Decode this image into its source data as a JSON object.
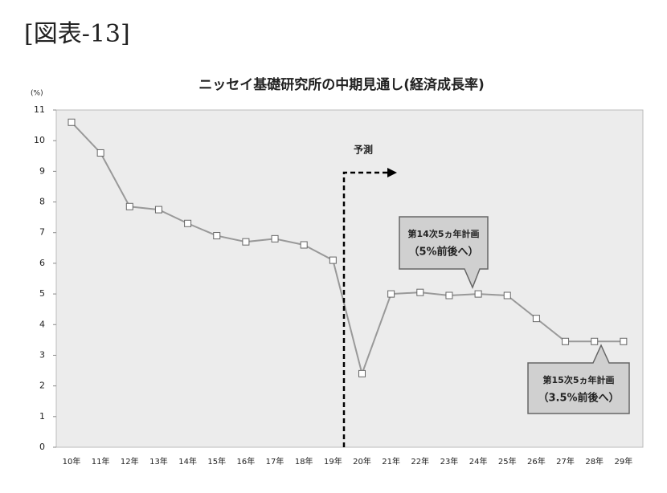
{
  "header": "[図表-13]",
  "chart_data": {
    "type": "line",
    "title": "ニッセイ基礎研究所の中期見通し(経済成長率)",
    "y_unit": "(%)",
    "categories": [
      "10年",
      "11年",
      "12年",
      "13年",
      "14年",
      "15年",
      "16年",
      "17年",
      "18年",
      "19年",
      "20年",
      "21年",
      "22年",
      "23年",
      "24年",
      "25年",
      "26年",
      "27年",
      "28年",
      "29年"
    ],
    "series": [
      {
        "color": "#999999",
        "values": [
          10.6,
          9.6,
          7.85,
          7.75,
          7.3,
          6.9,
          6.7,
          6.8,
          6.6,
          6.1,
          2.4,
          5.0,
          5.05,
          4.95,
          5.0,
          4.95,
          4.2,
          3.45,
          3.45,
          3.45
        ]
      }
    ],
    "ylim": [
      0,
      11
    ],
    "yticks": [
      0,
      1,
      2,
      3,
      4,
      5,
      6,
      7,
      8,
      9,
      10,
      11
    ],
    "annotations": {
      "forecast": "予測",
      "plan14": [
        "第14次5ヵ年計画",
        "（5%前後へ）"
      ],
      "plan15": [
        "第15次5ヵ年計画",
        "（3.5%前後へ）"
      ]
    }
  }
}
